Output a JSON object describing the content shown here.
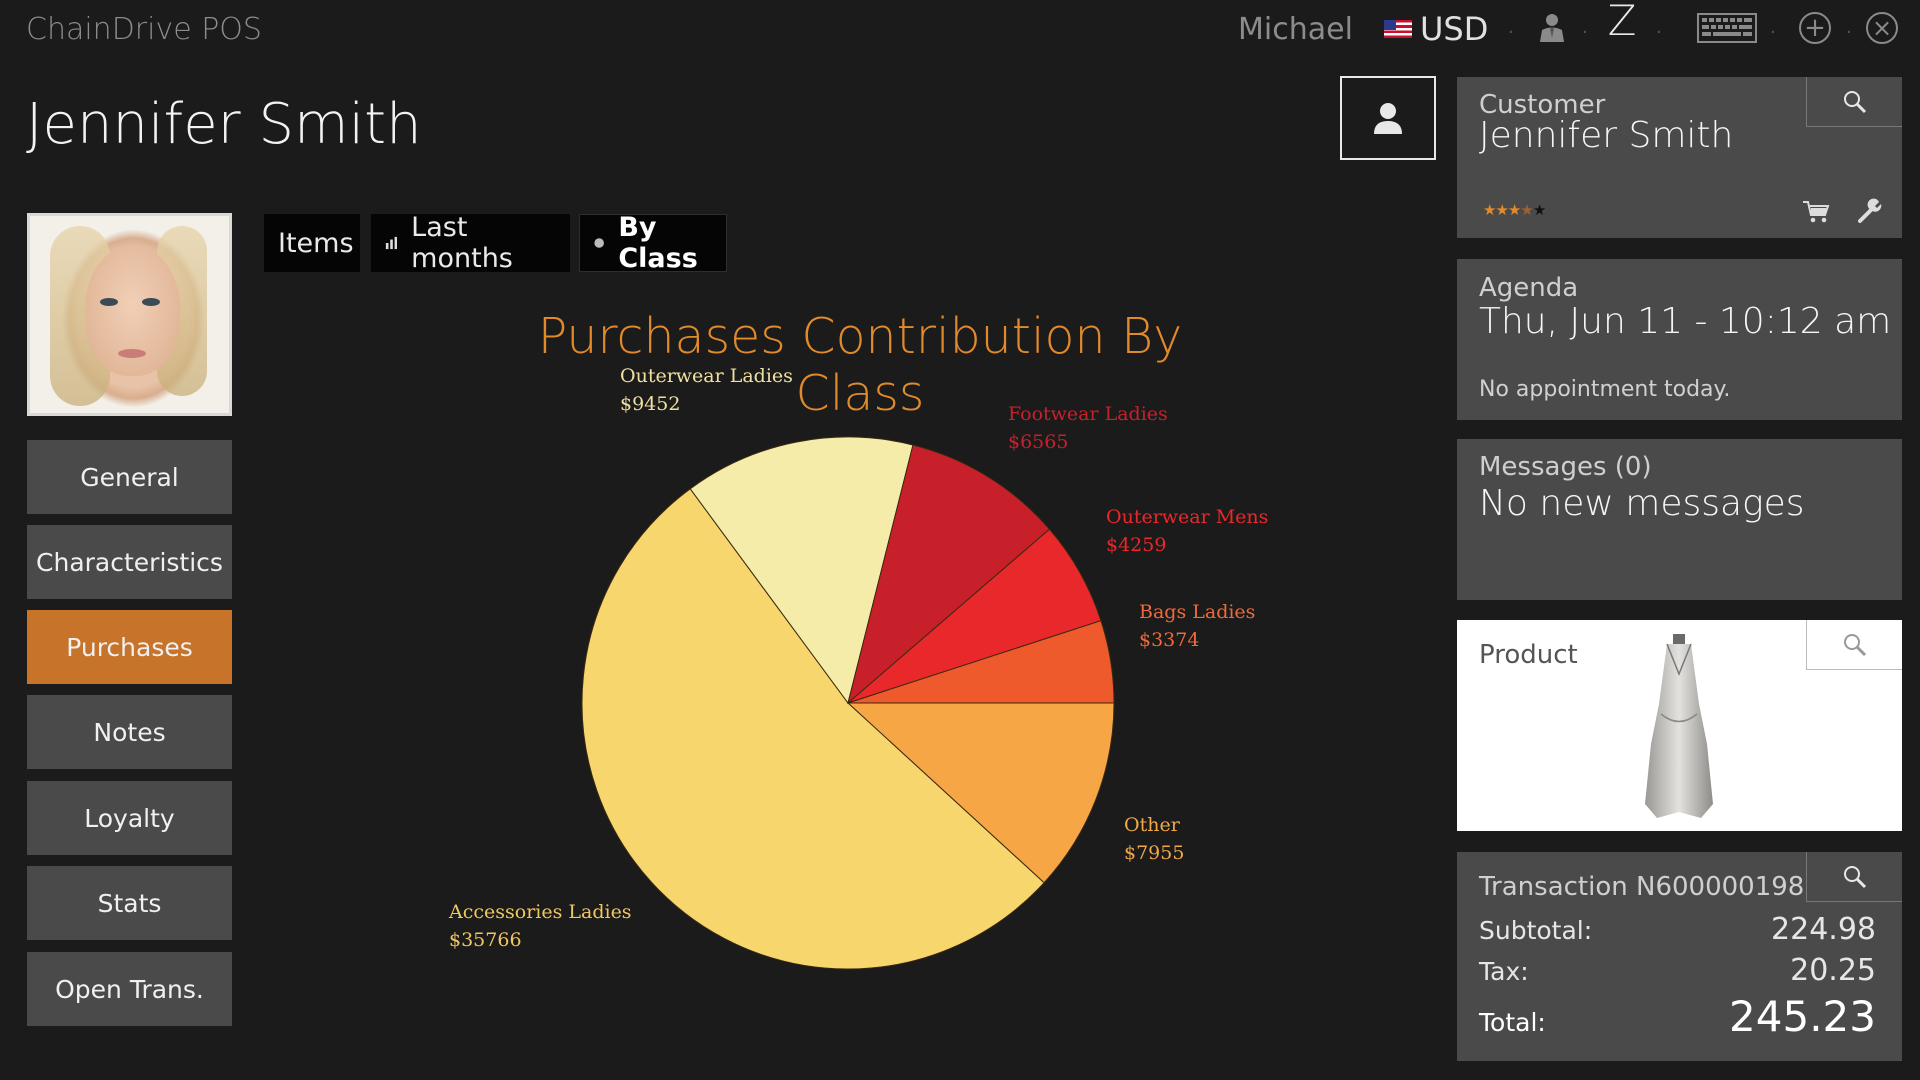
{
  "topbar": {
    "app_title": "ChainDrive POS",
    "user": "Michael",
    "currency": "USD",
    "icons": [
      "flag-us-icon",
      "salesperson-icon",
      "z-report-icon",
      "keyboard-icon",
      "add-circle-icon",
      "close-circle-icon"
    ],
    "z_label": "Z"
  },
  "customer_heading": "Jennifer Smith",
  "nav": {
    "items": [
      {
        "label": "General"
      },
      {
        "label": "Characteristics"
      },
      {
        "label": "Purchases",
        "active": true
      },
      {
        "label": "Notes"
      },
      {
        "label": "Loyalty"
      },
      {
        "label": "Stats"
      },
      {
        "label": "Open Trans."
      }
    ],
    "active_color": "#c8732a"
  },
  "tabs": [
    {
      "label": "Items",
      "icon": ""
    },
    {
      "label": "Last months",
      "icon": "bar-chart-icon"
    },
    {
      "label": "By Class",
      "icon": "pie-chart-icon",
      "selected": true
    }
  ],
  "chart_data": {
    "type": "pie",
    "title": "Purchases Contribution By Class",
    "slices": [
      {
        "label": "Outerwear Ladies",
        "value": 9452,
        "display": "$9452",
        "color": "#f6ecaa",
        "label_color": "#f0e0a0"
      },
      {
        "label": "Footwear Ladies",
        "value": 6565,
        "display": "$6565",
        "color": "#c8202a",
        "label_color": "#c8202a"
      },
      {
        "label": "Outerwear Mens",
        "value": 4259,
        "display": "$4259",
        "color": "#e8282a",
        "label_color": "#e8282a"
      },
      {
        "label": "Bags Ladies",
        "value": 3374,
        "display": "$3374",
        "color": "#ee5a2c",
        "label_color": "#ee6a3a"
      },
      {
        "label": "Other",
        "value": 7955,
        "display": "$7955",
        "color": "#f7a645",
        "label_color": "#f0a848"
      },
      {
        "label": "Accessories Ladies",
        "value": 35766,
        "display": "$35766",
        "color": "#f8d66e",
        "label_color": "#f0c860"
      }
    ]
  },
  "customer_panel": {
    "label": "Customer",
    "name": "Jennifer Smith",
    "rating": 3.5,
    "rating_max": 5,
    "icons": [
      "search-icon",
      "cart-icon",
      "wrench-icon"
    ]
  },
  "agenda": {
    "label": "Agenda",
    "datetime": "Thu, Jun 11 - 10:12 am",
    "note": "No appointment today."
  },
  "messages": {
    "label": "Messages (0)",
    "text": "No new messages"
  },
  "product": {
    "label": "Product"
  },
  "transaction": {
    "label": "Transaction N600000198",
    "subtotal_label": "Subtotal:",
    "subtotal": "224.98",
    "tax_label": "Tax:",
    "tax": "20.25",
    "total_label": "Total:",
    "total": "245.23"
  }
}
